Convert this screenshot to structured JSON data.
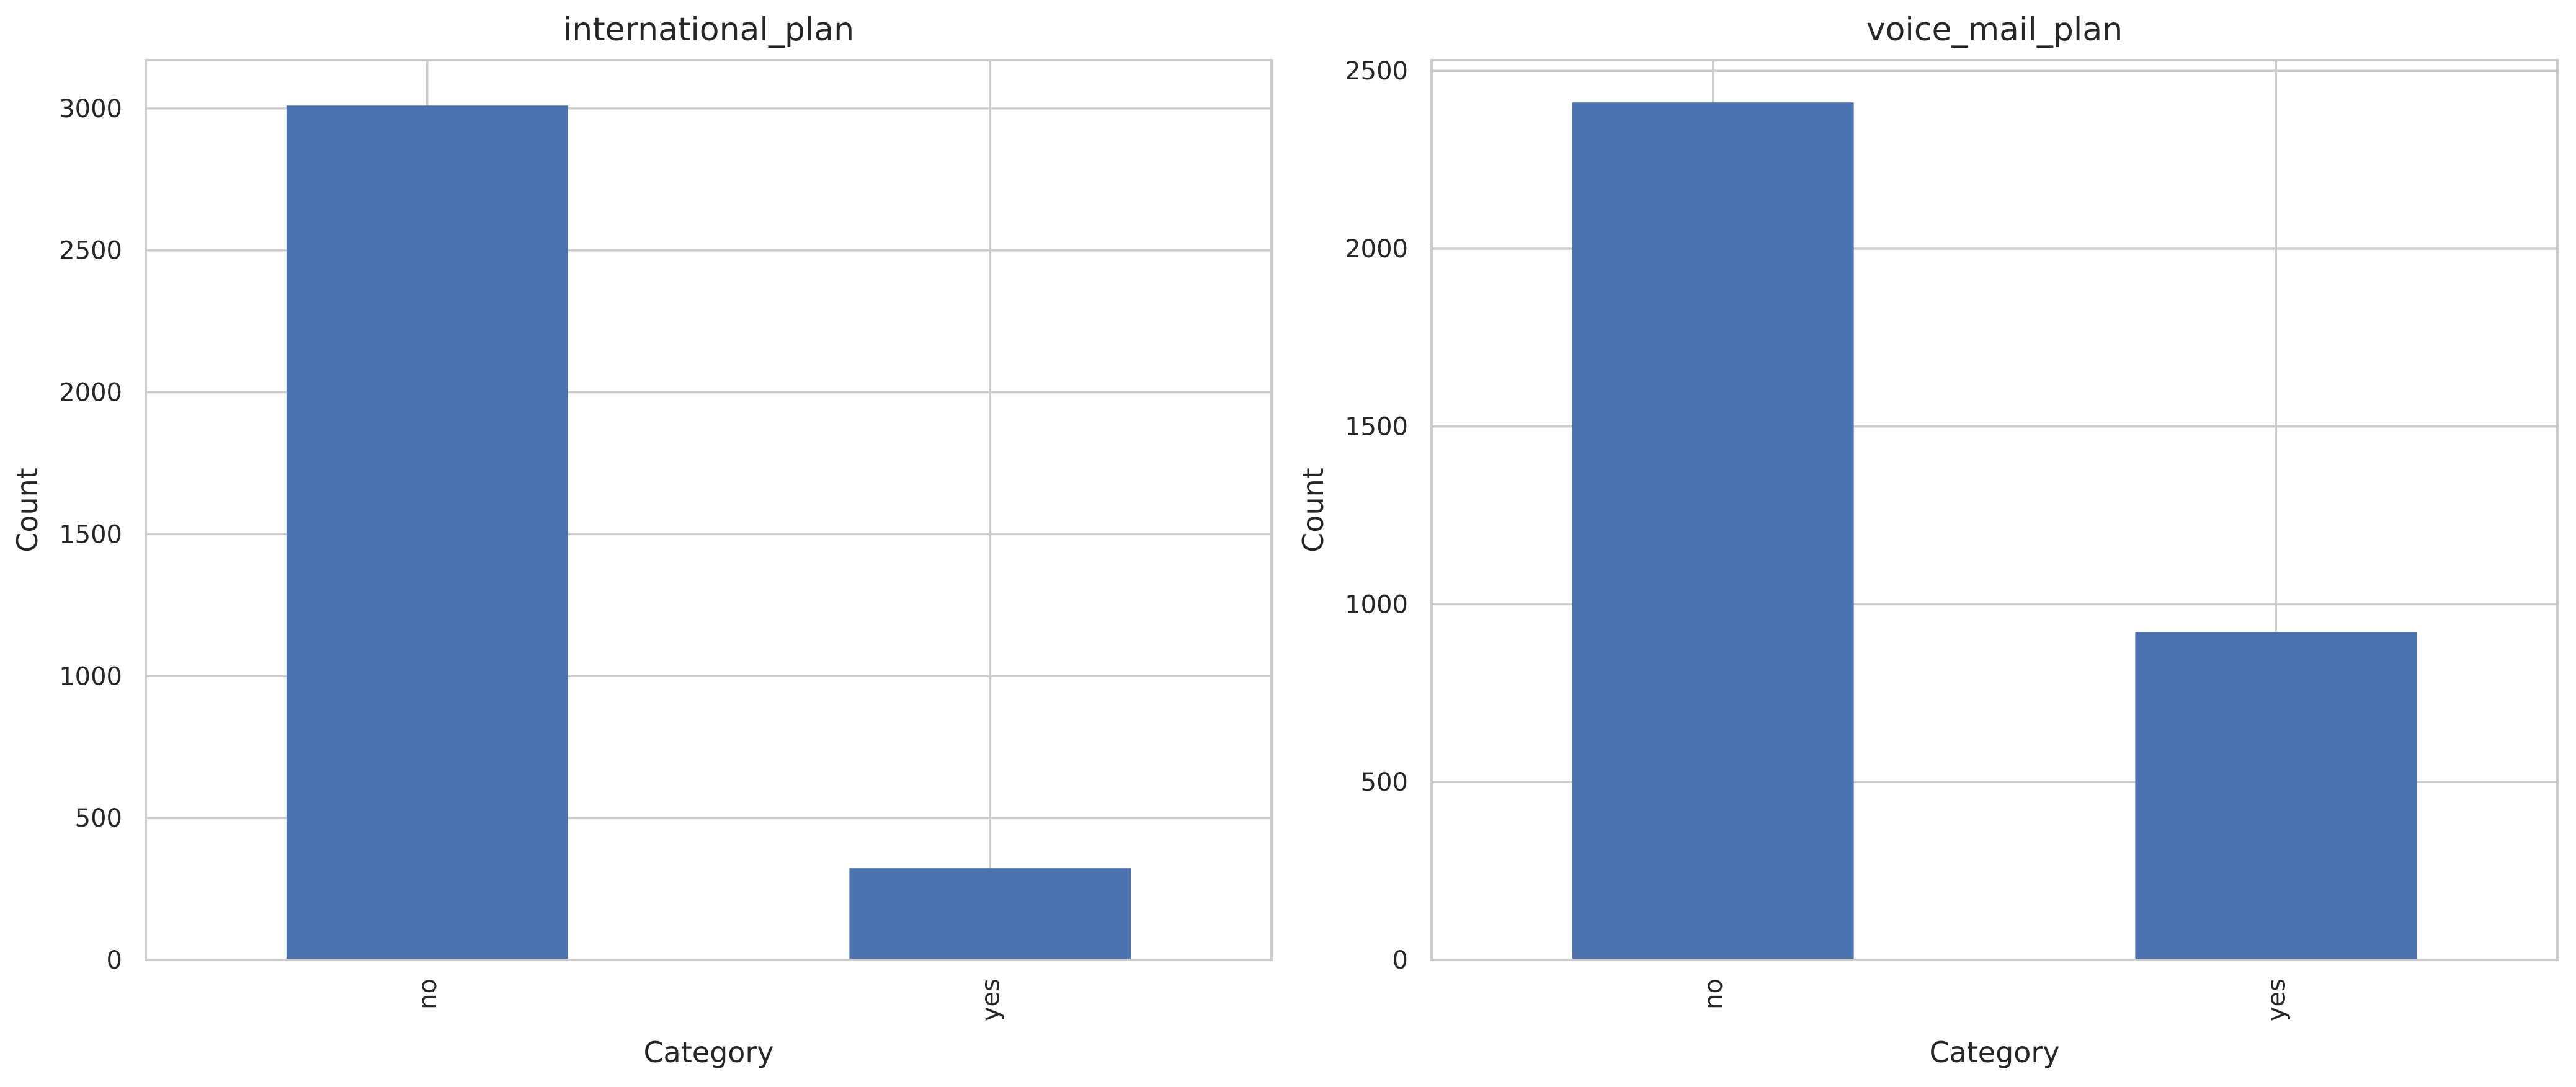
{
  "chart_data": [
    {
      "type": "bar",
      "title": "international_plan",
      "xlabel": "Category",
      "ylabel": "Count",
      "categories": [
        "no",
        "yes"
      ],
      "values": [
        3010,
        323
      ],
      "ylim": [
        0,
        3170
      ],
      "yticks": [
        0,
        500,
        1000,
        1500,
        2000,
        2500,
        3000
      ],
      "grid": true,
      "bar_color": "#4c72b0"
    },
    {
      "type": "bar",
      "title": "voice_mail_plan",
      "xlabel": "Category",
      "ylabel": "Count",
      "categories": [
        "no",
        "yes"
      ],
      "values": [
        2411,
        922
      ],
      "ylim": [
        0,
        2530
      ],
      "yticks": [
        0,
        500,
        1000,
        1500,
        2000,
        2500
      ],
      "grid": true,
      "bar_color": "#4c72b0"
    }
  ]
}
